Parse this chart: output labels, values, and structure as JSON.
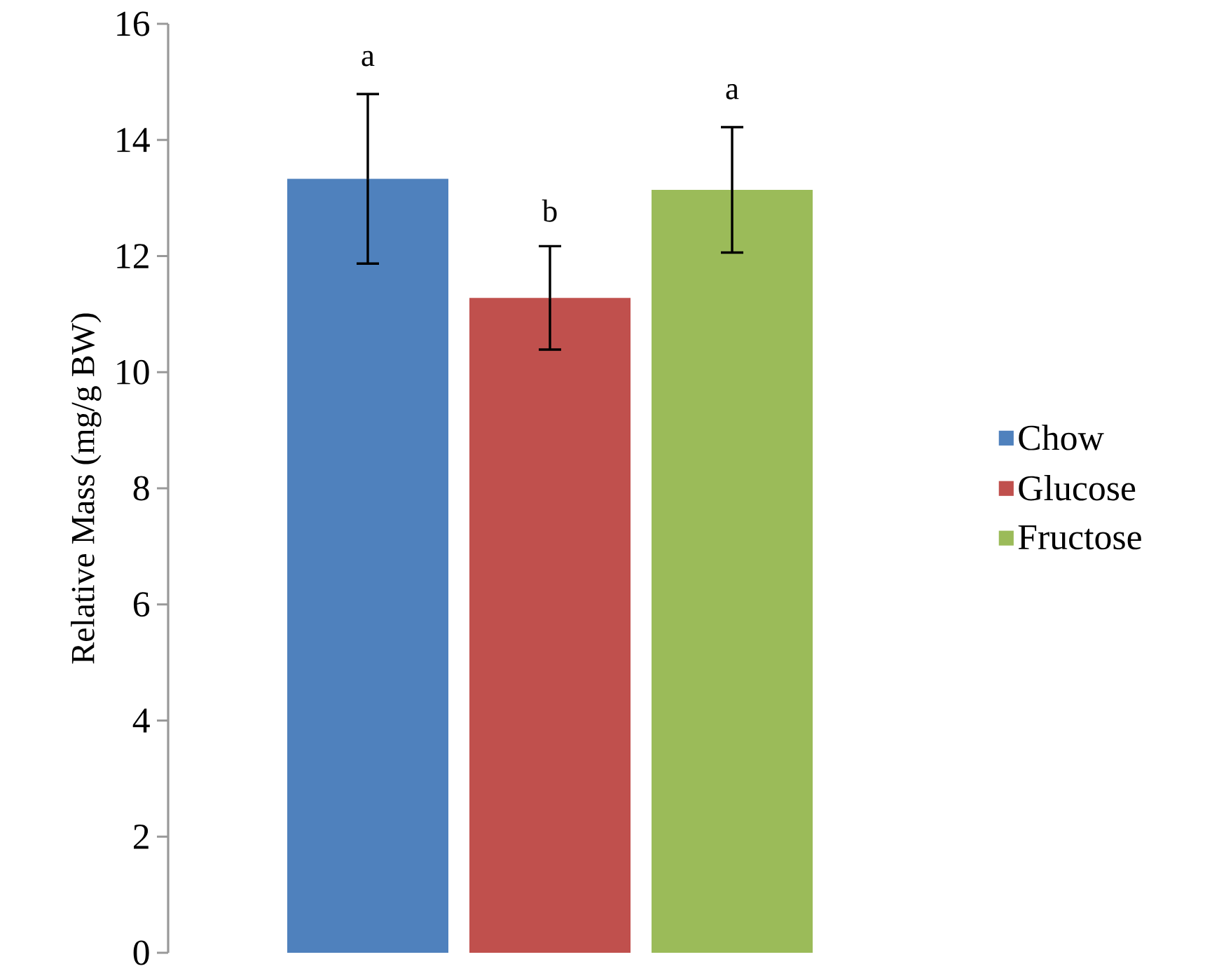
{
  "chart_data": {
    "type": "bar",
    "ylabel": "Relative Mass (mg/g BW)",
    "categories": [
      null
    ],
    "series": [
      {
        "name": "Chow",
        "color": "#4f81bd",
        "values": [
          13.33
        ],
        "errors": [
          1.46
        ]
      },
      {
        "name": "Glucose",
        "color": "#c0504d",
        "values": [
          11.28
        ],
        "errors": [
          0.89
        ]
      },
      {
        "name": "Fructose",
        "color": "#9bbb59",
        "values": [
          13.14
        ],
        "errors": [
          1.08
        ]
      }
    ],
    "ylim": [
      0,
      16
    ],
    "yticks": [
      0,
      2,
      4,
      6,
      8,
      10,
      12,
      14,
      16
    ],
    "legend": "right",
    "grid": false,
    "annotations": [
      "a",
      "b",
      "a"
    ]
  }
}
